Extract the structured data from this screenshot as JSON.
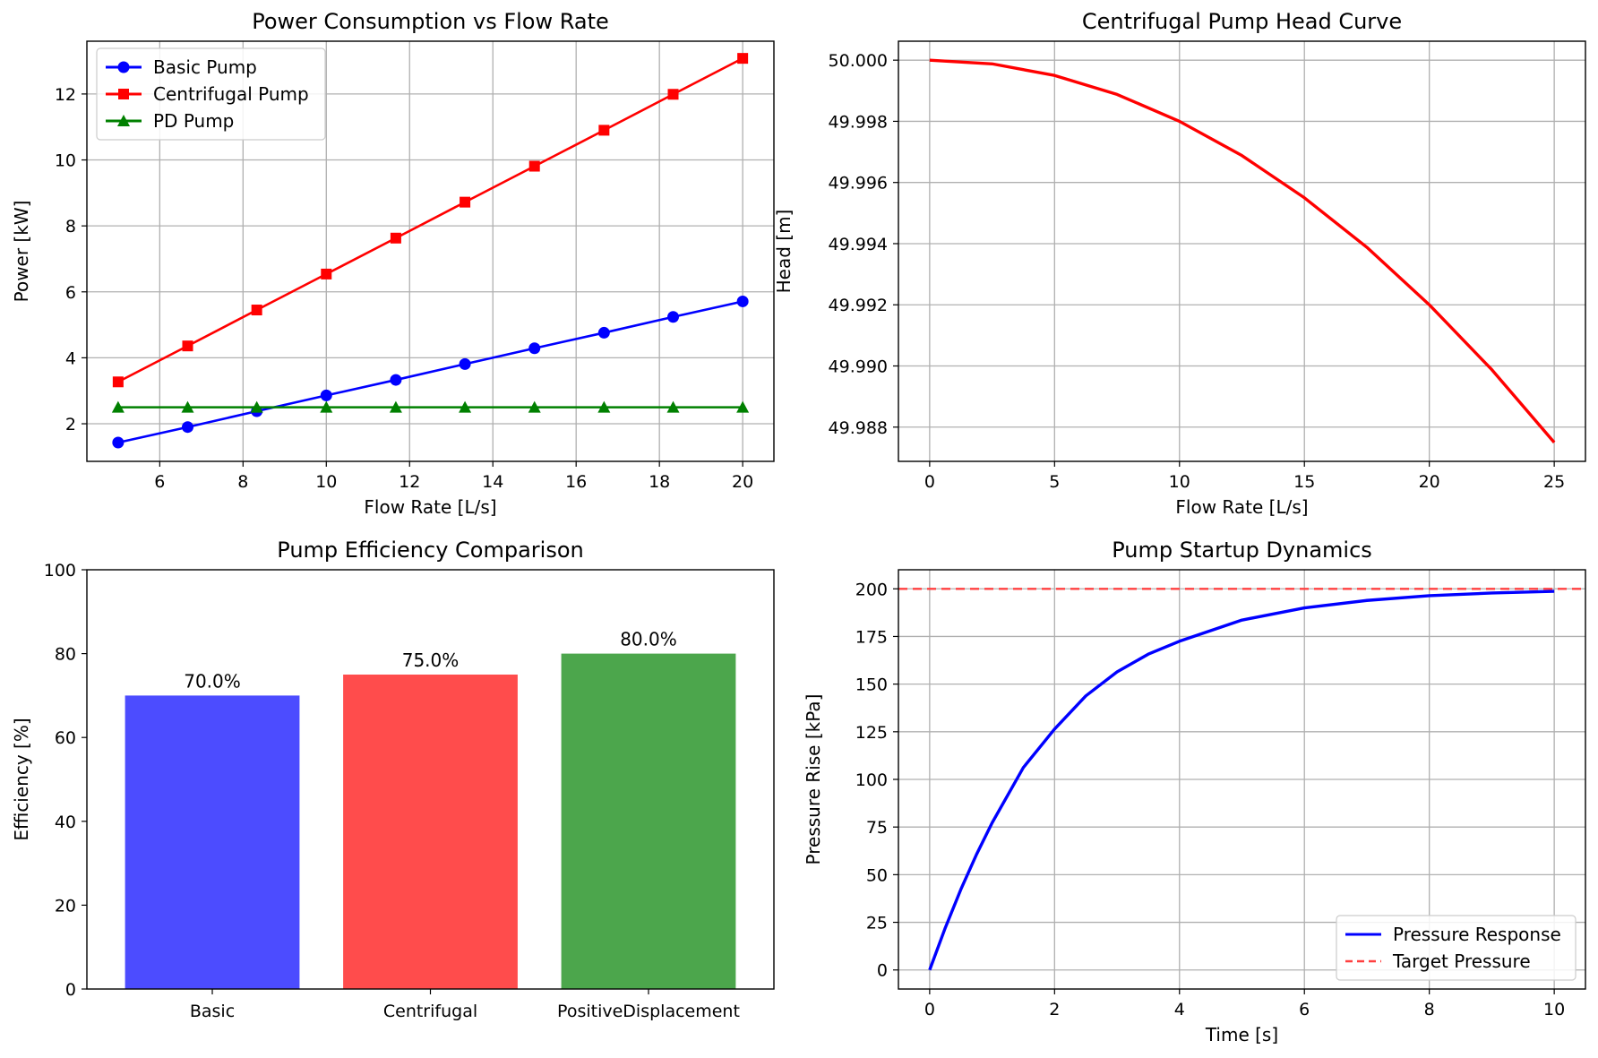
{
  "chart_data": [
    {
      "id": "power",
      "type": "line",
      "title": "Power Consumption vs Flow Rate",
      "xlabel": "Flow Rate [L/s]",
      "ylabel": "Power [kW]",
      "xlim": [
        4.25,
        20.75
      ],
      "ylim": [
        0.86,
        13.6
      ],
      "xticks": [
        6,
        8,
        10,
        12,
        14,
        16,
        18,
        20
      ],
      "yticks": [
        2,
        4,
        6,
        8,
        10,
        12
      ],
      "grid": true,
      "legend_position": "upper-left",
      "x": [
        5.0,
        6.67,
        8.33,
        10.0,
        11.67,
        13.33,
        15.0,
        16.67,
        18.33,
        20.0
      ],
      "series": [
        {
          "name": "Basic Pump",
          "color": "#0000ff",
          "marker": "circle",
          "values": [
            1.43,
            1.9,
            2.38,
            2.86,
            3.33,
            3.81,
            4.29,
            4.76,
            5.24,
            5.71
          ]
        },
        {
          "name": "Centrifugal Pump",
          "color": "#ff0000",
          "marker": "square",
          "values": [
            3.27,
            4.36,
            5.45,
            6.54,
            7.63,
            8.72,
            9.81,
            10.9,
            11.99,
            13.08
          ]
        },
        {
          "name": "PD Pump",
          "color": "#008000",
          "marker": "triangle",
          "values": [
            2.5,
            2.5,
            2.5,
            2.5,
            2.5,
            2.5,
            2.5,
            2.5,
            2.5,
            2.5
          ]
        }
      ]
    },
    {
      "id": "head",
      "type": "line",
      "title": "Centrifugal Pump Head Curve",
      "xlabel": "Flow Rate [L/s]",
      "ylabel": "Head [m]",
      "xlim": [
        -1.25,
        26.25
      ],
      "ylim": [
        49.98688,
        50.00062
      ],
      "xticks": [
        0,
        5,
        10,
        15,
        20,
        25
      ],
      "yticks": [
        49.988,
        49.99,
        49.992,
        49.994,
        49.996,
        49.998,
        50.0
      ],
      "ytick_labels": [
        "49.988",
        "49.990",
        "49.992",
        "49.994",
        "49.996",
        "49.998",
        "50.000"
      ],
      "grid": true,
      "series": [
        {
          "color": "#ff0000",
          "x": [
            0,
            2.5,
            5,
            7.5,
            10,
            12.5,
            15,
            17.5,
            20,
            22.5,
            25
          ],
          "values": [
            50.0,
            49.99988,
            49.9995,
            49.99888,
            49.998,
            49.99688,
            49.9955,
            49.99388,
            49.992,
            49.98988,
            49.9875
          ]
        }
      ]
    },
    {
      "id": "efficiency",
      "type": "bar",
      "title": "Pump Efficiency Comparison",
      "xlabel": "",
      "ylabel": "Efficiency [%]",
      "ylim": [
        0,
        100
      ],
      "yticks": [
        0,
        20,
        40,
        60,
        80,
        100
      ],
      "categories": [
        "Basic",
        "Centrifugal",
        "PositiveDisplacement"
      ],
      "values": [
        70.0,
        75.0,
        80.0
      ],
      "value_labels": [
        "70.0%",
        "75.0%",
        "80.0%"
      ],
      "colors": [
        "#4c4cff",
        "#ff4c4c",
        "#4ca64c"
      ]
    },
    {
      "id": "startup",
      "type": "line",
      "title": "Pump Startup Dynamics",
      "xlabel": "Time [s]",
      "ylabel": "Pressure Rise [kPa]",
      "xlim": [
        -0.5,
        10.5
      ],
      "ylim": [
        -10,
        210
      ],
      "xticks": [
        0,
        2,
        4,
        6,
        8,
        10
      ],
      "yticks": [
        0,
        25,
        50,
        75,
        100,
        125,
        150,
        175,
        200
      ],
      "grid": true,
      "legend_position": "lower-right",
      "series": [
        {
          "name": "Pressure Response",
          "color": "#0000ff",
          "x": [
            0,
            0.25,
            0.5,
            0.75,
            1,
            1.5,
            2,
            2.5,
            3,
            3.5,
            4,
            5,
            6,
            7,
            8,
            9,
            10
          ],
          "values": [
            0,
            22.1,
            42.3,
            60.6,
            77.2,
            106.2,
            126.4,
            143.8,
            156.4,
            165.7,
            172.5,
            183.6,
            190.0,
            193.9,
            196.4,
            197.8,
            198.7
          ]
        },
        {
          "name": "Target Pressure",
          "color": "#ff4040",
          "dashed": true,
          "x": [
            -0.5,
            10.5
          ],
          "values": [
            200,
            200
          ]
        }
      ]
    }
  ]
}
